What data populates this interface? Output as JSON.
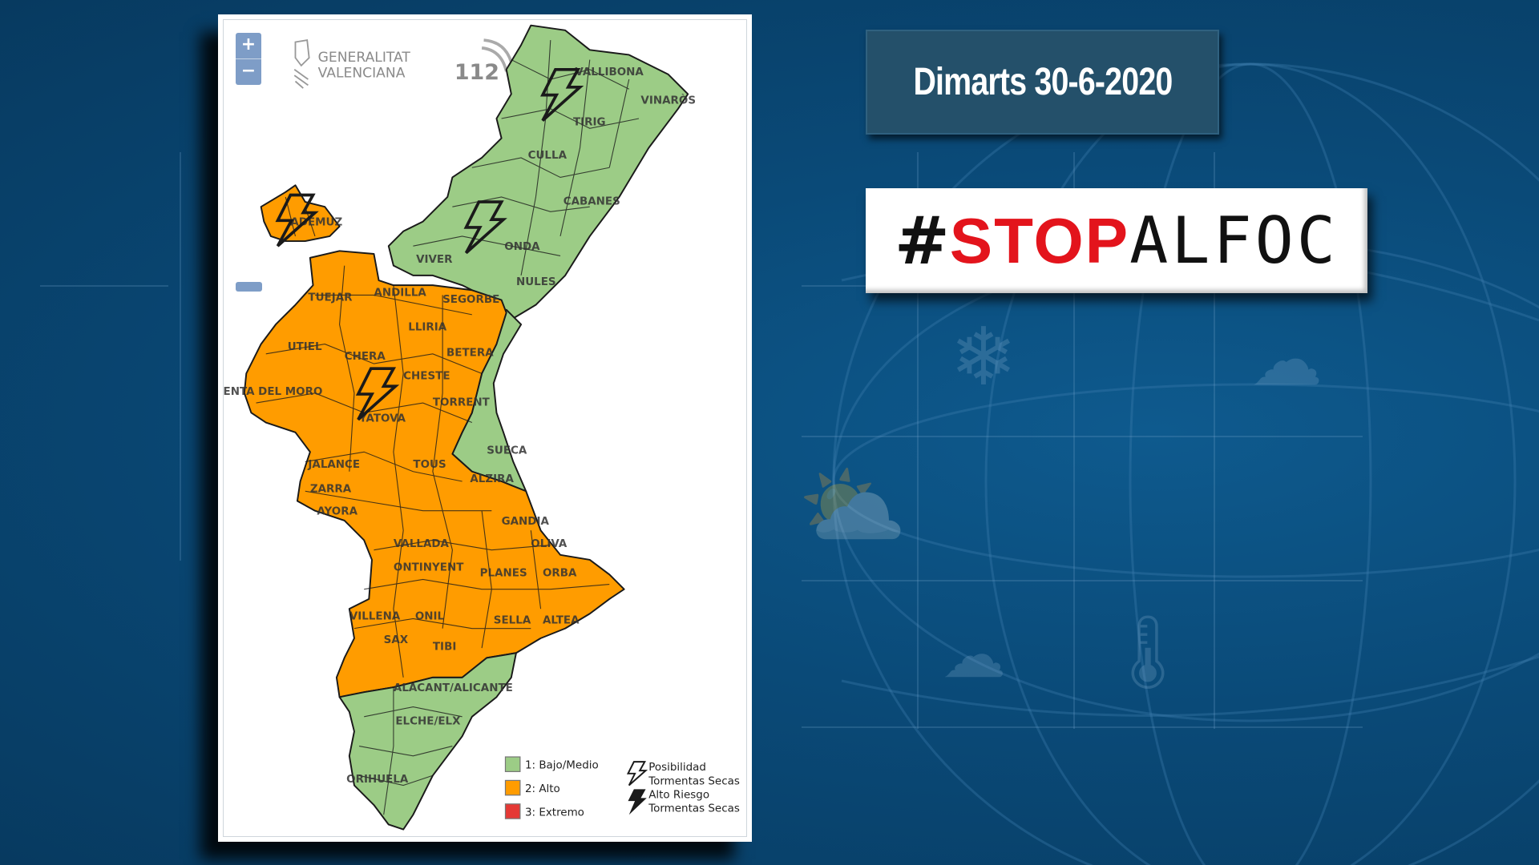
{
  "header": {
    "date_label": "Dimarts 30-6-2020",
    "campaign": {
      "hash": "#",
      "red_part": "STOP",
      "black_part": "ALFOC"
    }
  },
  "map": {
    "zoom_in_label": "+",
    "zoom_out_label": "−",
    "logo_generalitat": [
      "GENERALITAT",
      "VALENCIANA"
    ],
    "logo_112": "112",
    "colors": {
      "level1": "#9ccc86",
      "level2": "#ff9c00",
      "level3": "#e53935",
      "border": "#1a1a1a"
    },
    "towns": [
      "VALLIBONA",
      "VINARÒS",
      "TIRIG",
      "CULLA",
      "CABANES",
      "ONDA",
      "VIVER",
      "NULES",
      "ADEMUZ",
      "TUEJAR",
      "ANDILLA",
      "SEGORBE",
      "LLIRIA",
      "UTIEL",
      "CHERA",
      "BETERA",
      "CHESTE",
      "VENTA DEL MORO",
      "YATOVA",
      "TORRENT",
      "SUECA",
      "JALANCE",
      "TOUS",
      "ALZIRA",
      "ZARRA",
      "AYORA",
      "GANDIA",
      "OLIVA",
      "VALLADA",
      "ONTINYENT",
      "PLANES",
      "ORBA",
      "VILLENA",
      "ONIL",
      "SELLA",
      "ALTEA",
      "SAX",
      "TIBI",
      "ALACANT/ALICANTE",
      "ELCHE/ELX",
      "ORIHUELA"
    ],
    "legend": {
      "levels": [
        {
          "label": "1: Bajo/Medio",
          "color": "#9ccc86"
        },
        {
          "label": "2: Alto",
          "color": "#ff9c00"
        },
        {
          "label": "3: Extremo",
          "color": "#e53935"
        }
      ],
      "storms": [
        {
          "label1": "Posibilidad",
          "label2": "Tormentas Secas",
          "icon": "lightning-outline-icon"
        },
        {
          "label1": "Alto Riesgo",
          "label2": "Tormentas Secas",
          "icon": "lightning-filled-icon"
        }
      ]
    }
  }
}
